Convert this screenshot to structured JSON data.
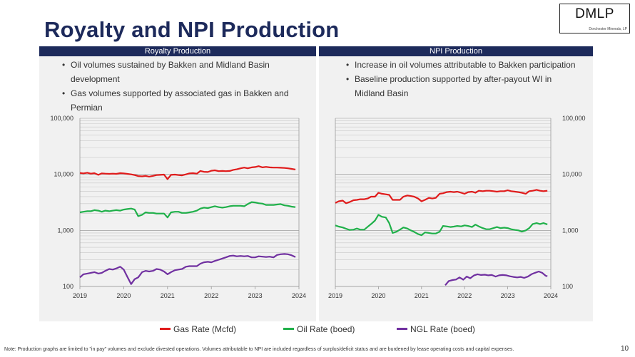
{
  "page": {
    "title": "Royalty and NPI Production",
    "logo_text": "DMLP",
    "logo_subtext": "Dorchester Minerals, LP",
    "page_number": "10",
    "footnote": "Note: Production graphs are limited to \"in pay\" volumes and exclude divested operations. Volumes attributable to NPI are included regardless of surplus/deficit status and are burdened by lease operating costs and capital expenses."
  },
  "panels": [
    {
      "header": "Royalty Production",
      "bullets": [
        "Oil volumes sustained by Bakken and Midland Basin",
        "development",
        "Gas volumes supported by associated gas in Bakken and",
        "Permian"
      ]
    },
    {
      "header": "NPI Production",
      "bullets": [
        "Increase in oil volumes attributable to Bakken participation",
        "Baseline production supported by after-payout WI in",
        "Midland Basin"
      ]
    }
  ],
  "legend": [
    {
      "label": "Gas Rate (Mcfd)",
      "color": "#e01b1b"
    },
    {
      "label": "Oil Rate (boed)",
      "color": "#20b04a"
    },
    {
      "label": "NGL Rate (boed)",
      "color": "#7030a0"
    }
  ],
  "chart_data": [
    {
      "type": "line",
      "title": "Royalty Production",
      "y_scale": "log",
      "ylim": [
        100,
        100000
      ],
      "y_ticks": [
        100,
        1000,
        10000,
        100000
      ],
      "y_tick_labels": [
        "100",
        "1,000",
        "10,000",
        "100,000"
      ],
      "y_axis_side": "left",
      "xlim": [
        2019,
        2024
      ],
      "x_ticks": [
        2019,
        2020,
        2021,
        2022,
        2023,
        2024
      ],
      "x_tick_labels": [
        "2019",
        "2020",
        "2021",
        "2022",
        "2023",
        "2024"
      ],
      "series": [
        {
          "name": "Gas Rate (Mcfd)",
          "color": "#e01b1b",
          "x": [
            2019.0,
            2019.08,
            2019.17,
            2019.25,
            2019.33,
            2019.42,
            2019.5,
            2019.58,
            2019.67,
            2019.75,
            2019.83,
            2019.92,
            2020.0,
            2020.08,
            2020.17,
            2020.25,
            2020.33,
            2020.42,
            2020.5,
            2020.58,
            2020.67,
            2020.75,
            2020.83,
            2020.92,
            2021.0,
            2021.08,
            2021.17,
            2021.25,
            2021.33,
            2021.42,
            2021.5,
            2021.58,
            2021.67,
            2021.75,
            2021.83,
            2021.92,
            2022.0,
            2022.08,
            2022.17,
            2022.25,
            2022.33,
            2022.42,
            2022.5,
            2022.58,
            2022.67,
            2022.75,
            2022.83,
            2022.92,
            2023.0,
            2023.08,
            2023.17,
            2023.25,
            2023.33,
            2023.42,
            2023.5,
            2023.58,
            2023.67,
            2023.75,
            2023.83,
            2023.92
          ],
          "y": [
            10600,
            10400,
            10700,
            10300,
            10500,
            9800,
            10400,
            10300,
            10200,
            10300,
            10200,
            10500,
            10400,
            10200,
            10000,
            9700,
            9300,
            9200,
            9400,
            9100,
            9400,
            9700,
            9800,
            9900,
            8200,
            9800,
            9900,
            9700,
            9600,
            10000,
            10400,
            10500,
            10300,
            11500,
            11100,
            11000,
            11600,
            11800,
            11400,
            11500,
            11400,
            11500,
            12000,
            12300,
            12800,
            13200,
            12800,
            13300,
            13500,
            14000,
            13300,
            13600,
            13300,
            13200,
            13200,
            13100,
            13000,
            12800,
            12500,
            12200
          ]
        },
        {
          "name": "Oil Rate (boed)",
          "color": "#20b04a",
          "x": [
            2019.0,
            2019.08,
            2019.17,
            2019.25,
            2019.33,
            2019.42,
            2019.5,
            2019.58,
            2019.67,
            2019.75,
            2019.83,
            2019.92,
            2020.0,
            2020.08,
            2020.17,
            2020.25,
            2020.33,
            2020.42,
            2020.5,
            2020.58,
            2020.67,
            2020.75,
            2020.83,
            2020.92,
            2021.0,
            2021.08,
            2021.17,
            2021.25,
            2021.33,
            2021.42,
            2021.5,
            2021.58,
            2021.67,
            2021.75,
            2021.83,
            2021.92,
            2022.0,
            2022.08,
            2022.17,
            2022.25,
            2022.33,
            2022.42,
            2022.5,
            2022.58,
            2022.67,
            2022.75,
            2022.83,
            2022.92,
            2023.0,
            2023.08,
            2023.17,
            2023.25,
            2023.33,
            2023.42,
            2023.5,
            2023.58,
            2023.67,
            2023.75,
            2023.83,
            2023.92
          ],
          "y": [
            2100,
            2150,
            2200,
            2200,
            2300,
            2250,
            2150,
            2250,
            2200,
            2250,
            2300,
            2250,
            2350,
            2400,
            2450,
            2350,
            1800,
            1900,
            2100,
            2050,
            2050,
            2000,
            2000,
            2000,
            1700,
            2100,
            2150,
            2150,
            2050,
            2050,
            2100,
            2150,
            2250,
            2450,
            2550,
            2500,
            2600,
            2700,
            2600,
            2550,
            2600,
            2700,
            2750,
            2750,
            2750,
            2700,
            2950,
            3200,
            3150,
            3050,
            3000,
            2850,
            2850,
            2850,
            2900,
            2950,
            2800,
            2750,
            2650,
            2600
          ]
        },
        {
          "name": "NGL Rate (boed)",
          "color": "#7030a0",
          "x": [
            2019.0,
            2019.08,
            2019.17,
            2019.25,
            2019.33,
            2019.42,
            2019.5,
            2019.58,
            2019.67,
            2019.75,
            2019.83,
            2019.92,
            2020.0,
            2020.08,
            2020.17,
            2020.25,
            2020.33,
            2020.42,
            2020.5,
            2020.58,
            2020.67,
            2020.75,
            2020.83,
            2020.92,
            2021.0,
            2021.08,
            2021.17,
            2021.25,
            2021.33,
            2021.42,
            2021.5,
            2021.58,
            2021.67,
            2021.75,
            2021.83,
            2021.92,
            2022.0,
            2022.08,
            2022.17,
            2022.25,
            2022.33,
            2022.42,
            2022.5,
            2022.58,
            2022.67,
            2022.75,
            2022.83,
            2022.92,
            2023.0,
            2023.08,
            2023.17,
            2023.25,
            2023.33,
            2023.42,
            2023.5,
            2023.58,
            2023.67,
            2023.75,
            2023.83,
            2023.92
          ],
          "y": [
            145,
            165,
            170,
            175,
            180,
            170,
            175,
            190,
            205,
            200,
            210,
            225,
            200,
            150,
            110,
            135,
            145,
            180,
            190,
            185,
            190,
            205,
            200,
            185,
            165,
            180,
            195,
            200,
            205,
            225,
            230,
            230,
            230,
            255,
            270,
            275,
            270,
            285,
            300,
            315,
            330,
            350,
            355,
            345,
            350,
            345,
            350,
            330,
            330,
            345,
            340,
            335,
            340,
            330,
            365,
            375,
            380,
            375,
            360,
            335
          ]
        }
      ]
    },
    {
      "type": "line",
      "title": "NPI Production",
      "y_scale": "log",
      "ylim": [
        100,
        100000
      ],
      "y_ticks": [
        100,
        1000,
        10000,
        100000
      ],
      "y_tick_labels": [
        "100",
        "1,000",
        "10,000",
        "100,000"
      ],
      "y_axis_side": "right",
      "xlim": [
        2019,
        2024
      ],
      "x_ticks": [
        2019,
        2020,
        2021,
        2022,
        2023,
        2024
      ],
      "x_tick_labels": [
        "2019",
        "2020",
        "2021",
        "2022",
        "2023",
        "2024"
      ],
      "series": [
        {
          "name": "Gas Rate (Mcfd)",
          "color": "#e01b1b",
          "x": [
            2019.0,
            2019.08,
            2019.17,
            2019.25,
            2019.33,
            2019.42,
            2019.5,
            2019.58,
            2019.67,
            2019.75,
            2019.83,
            2019.92,
            2020.0,
            2020.08,
            2020.17,
            2020.25,
            2020.33,
            2020.42,
            2020.5,
            2020.58,
            2020.67,
            2020.75,
            2020.83,
            2020.92,
            2021.0,
            2021.08,
            2021.17,
            2021.25,
            2021.33,
            2021.42,
            2021.5,
            2021.58,
            2021.67,
            2021.75,
            2021.83,
            2021.92,
            2022.0,
            2022.08,
            2022.17,
            2022.25,
            2022.33,
            2022.42,
            2022.5,
            2022.58,
            2022.67,
            2022.75,
            2022.83,
            2022.92,
            2023.0,
            2023.08,
            2023.17,
            2023.25,
            2023.33,
            2023.42,
            2023.5,
            2023.58,
            2023.67,
            2023.75,
            2023.83,
            2023.92
          ],
          "y": [
            3100,
            3300,
            3400,
            3050,
            3200,
            3450,
            3500,
            3600,
            3600,
            3700,
            4000,
            4000,
            4700,
            4500,
            4400,
            4300,
            3500,
            3500,
            3500,
            4000,
            4200,
            4100,
            4000,
            3700,
            3300,
            3500,
            3800,
            3700,
            3800,
            4500,
            4600,
            4800,
            4900,
            4800,
            4900,
            4700,
            4500,
            4800,
            4900,
            4700,
            5100,
            5000,
            5100,
            5100,
            5000,
            4900,
            5000,
            5000,
            5200,
            5000,
            4900,
            4800,
            4700,
            4500,
            5000,
            5100,
            5300,
            5100,
            5000,
            5100
          ]
        },
        {
          "name": "Oil Rate (boed)",
          "color": "#20b04a",
          "x": [
            2019.0,
            2019.08,
            2019.17,
            2019.25,
            2019.33,
            2019.42,
            2019.5,
            2019.58,
            2019.67,
            2019.75,
            2019.83,
            2019.92,
            2020.0,
            2020.08,
            2020.17,
            2020.25,
            2020.33,
            2020.42,
            2020.5,
            2020.58,
            2020.67,
            2020.75,
            2020.83,
            2020.92,
            2021.0,
            2021.08,
            2021.17,
            2021.25,
            2021.33,
            2021.42,
            2021.5,
            2021.58,
            2021.67,
            2021.75,
            2021.83,
            2021.92,
            2022.0,
            2022.08,
            2022.17,
            2022.25,
            2022.33,
            2022.42,
            2022.5,
            2022.58,
            2022.67,
            2022.75,
            2022.83,
            2022.92,
            2023.0,
            2023.08,
            2023.17,
            2023.25,
            2023.33,
            2023.42,
            2023.5,
            2023.58,
            2023.67,
            2023.75,
            2023.83,
            2023.92
          ],
          "y": [
            1230,
            1170,
            1130,
            1070,
            1020,
            1030,
            1080,
            1030,
            1030,
            1160,
            1300,
            1500,
            1900,
            1750,
            1700,
            1350,
            900,
            950,
            1030,
            1130,
            1080,
            1000,
            940,
            860,
            820,
            920,
            900,
            880,
            880,
            950,
            1200,
            1180,
            1150,
            1170,
            1200,
            1180,
            1230,
            1200,
            1150,
            1270,
            1180,
            1100,
            1050,
            1050,
            1100,
            1150,
            1100,
            1120,
            1100,
            1050,
            1020,
            1000,
            950,
            1000,
            1100,
            1300,
            1350,
            1300,
            1350,
            1280
          ]
        },
        {
          "name": "NGL Rate (boed)",
          "color": "#7030a0",
          "x": [
            2021.55,
            2021.63,
            2021.72,
            2021.8,
            2021.88,
            2021.97,
            2022.05,
            2022.13,
            2022.22,
            2022.3,
            2022.38,
            2022.47,
            2022.55,
            2022.63,
            2022.72,
            2022.8,
            2022.88,
            2022.97,
            2023.05,
            2023.13,
            2023.22,
            2023.3,
            2023.38,
            2023.47,
            2023.55,
            2023.63,
            2023.72,
            2023.8,
            2023.88,
            2023.92
          ],
          "y": [
            105,
            125,
            130,
            133,
            145,
            132,
            150,
            140,
            158,
            165,
            160,
            162,
            158,
            160,
            150,
            158,
            160,
            158,
            152,
            148,
            145,
            148,
            142,
            150,
            165,
            175,
            185,
            175,
            155,
            152
          ]
        }
      ]
    }
  ]
}
